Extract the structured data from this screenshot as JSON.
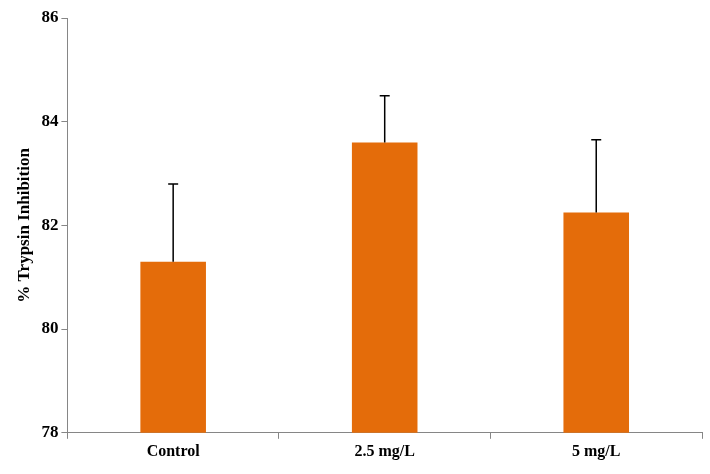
{
  "chart_data": {
    "type": "bar",
    "y_label": "% Trypsin Inhibition",
    "categories": [
      "Control",
      "2.5 mg/L",
      "5 mg/L"
    ],
    "values": [
      81.3,
      83.6,
      82.25
    ],
    "errors": [
      1.5,
      0.9,
      1.4
    ],
    "color": "#e46c0a",
    "ylim": [
      78,
      86
    ],
    "yticks": [
      78,
      80,
      82,
      84,
      86
    ],
    "grid": false
  }
}
